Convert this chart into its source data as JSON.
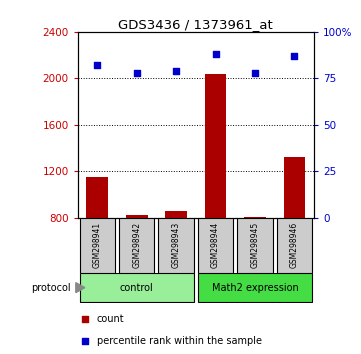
{
  "title": "GDS3436 / 1373961_at",
  "samples": [
    "GSM298941",
    "GSM298942",
    "GSM298943",
    "GSM298944",
    "GSM298945",
    "GSM298946"
  ],
  "counts": [
    1150,
    820,
    860,
    2040,
    810,
    1320
  ],
  "percentile_ranks": [
    82,
    78,
    79,
    88,
    78,
    87
  ],
  "ylim_left": [
    800,
    2400
  ],
  "ylim_right": [
    0,
    100
  ],
  "yticks_left": [
    800,
    1200,
    1600,
    2000,
    2400
  ],
  "yticks_right": [
    0,
    25,
    50,
    75,
    100
  ],
  "bar_color": "#AA0000",
  "scatter_color": "#0000CC",
  "bar_width": 0.55,
  "groups": [
    {
      "label": "control",
      "indices": [
        0,
        1,
        2
      ],
      "color": "#99EE99"
    },
    {
      "label": "Math2 expression",
      "indices": [
        3,
        4,
        5
      ],
      "color": "#44DD44"
    }
  ],
  "protocol_label": "protocol",
  "legend_bar_label": "count",
  "legend_scatter_label": "percentile rank within the sample",
  "bg_color": "#FFFFFF",
  "sample_box_color": "#CCCCCC",
  "left_tick_color": "#CC0000",
  "right_tick_color": "#0000CC"
}
